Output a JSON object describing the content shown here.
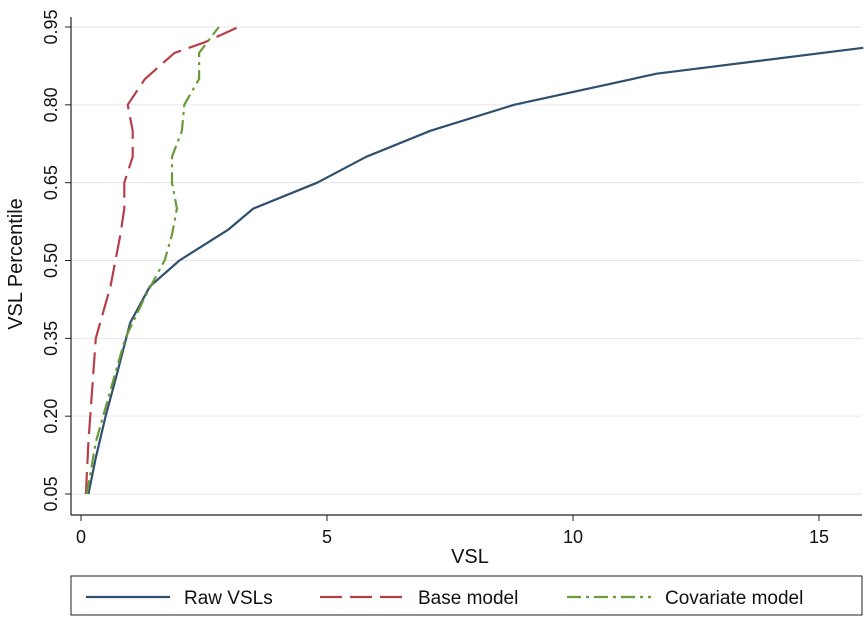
{
  "chart_data": {
    "type": "line",
    "xlabel": "VSL",
    "ylabel": "VSL Percentile",
    "xlim": [
      0,
      16
    ],
    "ylim": [
      0.05,
      0.95
    ],
    "xticks": [
      0,
      5,
      10,
      15
    ],
    "yticks": [
      0.05,
      0.2,
      0.35,
      0.5,
      0.65,
      0.8,
      0.95
    ],
    "ytick_labels": [
      "0.05",
      "0.20",
      "0.35",
      "0.50",
      "0.65",
      "0.80",
      "0.95"
    ],
    "grid": "horizontal",
    "legend_position": "bottom",
    "series": [
      {
        "name": "Raw VSLs",
        "color": "#2f4f6f",
        "dash": "solid",
        "points": [
          [
            0.15,
            0.05
          ],
          [
            0.3,
            0.12
          ],
          [
            0.5,
            0.2
          ],
          [
            0.7,
            0.27
          ],
          [
            1.0,
            0.38
          ],
          [
            1.4,
            0.45
          ],
          [
            2.0,
            0.5
          ],
          [
            3.0,
            0.56
          ],
          [
            3.5,
            0.6
          ],
          [
            4.8,
            0.65
          ],
          [
            5.8,
            0.7
          ],
          [
            7.1,
            0.75
          ],
          [
            8.8,
            0.8
          ],
          [
            11.7,
            0.86
          ],
          [
            15.9,
            0.91
          ]
        ]
      },
      {
        "name": "Base model",
        "color": "#b5404a",
        "dash": "long",
        "points": [
          [
            0.1,
            0.05
          ],
          [
            0.15,
            0.15
          ],
          [
            0.3,
            0.35
          ],
          [
            0.6,
            0.45
          ],
          [
            0.8,
            0.55
          ],
          [
            0.88,
            0.6
          ],
          [
            0.88,
            0.65
          ],
          [
            1.05,
            0.7
          ],
          [
            1.05,
            0.75
          ],
          [
            0.95,
            0.8
          ],
          [
            1.3,
            0.85
          ],
          [
            1.9,
            0.9
          ],
          [
            2.5,
            0.92
          ],
          [
            3.2,
            0.95
          ]
        ]
      },
      {
        "name": "Covariate model",
        "color": "#6a9a3a",
        "dash": "dashdot",
        "points": [
          [
            0.12,
            0.05
          ],
          [
            0.3,
            0.15
          ],
          [
            0.6,
            0.25
          ],
          [
            0.9,
            0.35
          ],
          [
            1.3,
            0.43
          ],
          [
            1.7,
            0.5
          ],
          [
            1.85,
            0.55
          ],
          [
            1.95,
            0.6
          ],
          [
            1.85,
            0.65
          ],
          [
            1.85,
            0.7
          ],
          [
            2.05,
            0.75
          ],
          [
            2.1,
            0.8
          ],
          [
            2.4,
            0.85
          ],
          [
            2.4,
            0.9
          ],
          [
            2.8,
            0.95
          ]
        ]
      }
    ]
  }
}
